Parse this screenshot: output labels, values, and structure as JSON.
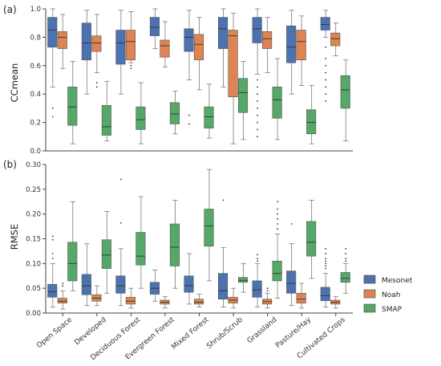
{
  "chart_data": [
    {
      "type": "box",
      "panel_label": "(a)",
      "ylabel": "CCmean",
      "ylim": [
        0.0,
        1.0
      ],
      "yticks": [
        0.0,
        0.2,
        0.4,
        0.6,
        0.8,
        1.0
      ],
      "categories": [
        "Open Space",
        "Developed",
        "Deciduous Forest",
        "Evergreen Forest",
        "Mixed Forest",
        "Shrub/Scrub",
        "Grassland",
        "Pasture/Hay",
        "Cultivated Crops"
      ],
      "series": [
        {
          "name": "Mesonet",
          "color": "#4c72b0",
          "boxes": [
            {
              "min": 0.45,
              "q1": 0.73,
              "median": 0.85,
              "q3": 0.94,
              "max": 1.0,
              "fliers": [
                0.3,
                0.24
              ]
            },
            {
              "min": 0.4,
              "q1": 0.64,
              "median": 0.76,
              "q3": 0.9,
              "max": 0.99,
              "fliers": []
            },
            {
              "min": 0.4,
              "q1": 0.61,
              "median": 0.76,
              "q3": 0.85,
              "max": 0.99,
              "fliers": []
            },
            {
              "min": 0.72,
              "q1": 0.81,
              "median": 0.87,
              "q3": 0.94,
              "max": 1.0,
              "fliers": []
            },
            {
              "min": 0.5,
              "q1": 0.7,
              "median": 0.8,
              "q3": 0.86,
              "max": 0.99,
              "fliers": [
                0.25,
                0.19
              ]
            },
            {
              "min": 0.45,
              "q1": 0.72,
              "median": 0.86,
              "q3": 0.94,
              "max": 1.0,
              "fliers": []
            },
            {
              "min": 0.54,
              "q1": 0.76,
              "median": 0.86,
              "q3": 0.94,
              "max": 1.0,
              "fliers": [
                0.5,
                0.45,
                0.4,
                0.35,
                0.3,
                0.25,
                0.2,
                0.15,
                0.1
              ]
            },
            {
              "min": 0.4,
              "q1": 0.62,
              "median": 0.73,
              "q3": 0.88,
              "max": 0.99,
              "fliers": []
            },
            {
              "min": 0.8,
              "q1": 0.85,
              "median": 0.89,
              "q3": 0.94,
              "max": 0.99,
              "fliers": [
                0.73,
                0.65,
                0.6,
                0.55,
                0.5,
                0.45,
                0.4,
                0.35
              ]
            }
          ]
        },
        {
          "name": "Noah",
          "color": "#dd8452",
          "boxes": [
            {
              "min": 0.58,
              "q1": 0.72,
              "median": 0.8,
              "q3": 0.84,
              "max": 0.96,
              "fliers": []
            },
            {
              "min": 0.55,
              "q1": 0.7,
              "median": 0.76,
              "q3": 0.81,
              "max": 0.96,
              "fliers": [
                0.48,
                0.45
              ]
            },
            {
              "min": 0.62,
              "q1": 0.64,
              "median": 0.77,
              "q3": 0.85,
              "max": 0.98,
              "fliers": [
                0.6,
                0.58
              ]
            },
            {
              "min": 0.59,
              "q1": 0.66,
              "median": 0.74,
              "q3": 0.78,
              "max": 0.91,
              "fliers": []
            },
            {
              "min": 0.43,
              "q1": 0.64,
              "median": 0.75,
              "q3": 0.82,
              "max": 0.94,
              "fliers": []
            },
            {
              "min": 0.05,
              "q1": 0.38,
              "median": 0.81,
              "q3": 0.85,
              "max": 0.97,
              "fliers": []
            },
            {
              "min": 0.55,
              "q1": 0.72,
              "median": 0.79,
              "q3": 0.84,
              "max": 0.94,
              "fliers": []
            },
            {
              "min": 0.46,
              "q1": 0.64,
              "median": 0.77,
              "q3": 0.85,
              "max": 0.95,
              "fliers": []
            },
            {
              "min": 0.67,
              "q1": 0.74,
              "median": 0.79,
              "q3": 0.83,
              "max": 0.9,
              "fliers": []
            }
          ]
        },
        {
          "name": "SMAP",
          "color": "#55a868",
          "boxes": [
            {
              "min": 0.05,
              "q1": 0.18,
              "median": 0.31,
              "q3": 0.45,
              "max": 0.63,
              "fliers": []
            },
            {
              "min": 0.07,
              "q1": 0.11,
              "median": 0.17,
              "q3": 0.32,
              "max": 0.49,
              "fliers": []
            },
            {
              "min": 0.05,
              "q1": 0.15,
              "median": 0.22,
              "q3": 0.31,
              "max": 0.48,
              "fliers": []
            },
            {
              "min": 0.12,
              "q1": 0.19,
              "median": 0.26,
              "q3": 0.34,
              "max": 0.42,
              "fliers": []
            },
            {
              "min": 0.09,
              "q1": 0.16,
              "median": 0.24,
              "q3": 0.31,
              "max": 0.47,
              "fliers": []
            },
            {
              "min": 0.08,
              "q1": 0.27,
              "median": 0.41,
              "q3": 0.51,
              "max": 0.63,
              "fliers": []
            },
            {
              "min": 0.08,
              "q1": 0.23,
              "median": 0.36,
              "q3": 0.45,
              "max": 0.65,
              "fliers": []
            },
            {
              "min": 0.05,
              "q1": 0.12,
              "median": 0.2,
              "q3": 0.29,
              "max": 0.46,
              "fliers": []
            },
            {
              "min": 0.07,
              "q1": 0.3,
              "median": 0.43,
              "q3": 0.53,
              "max": 0.64,
              "fliers": []
            }
          ]
        }
      ]
    },
    {
      "type": "box",
      "panel_label": "(b)",
      "ylabel": "RMSE",
      "ylim": [
        0.0,
        0.3
      ],
      "yticks": [
        0.0,
        0.05,
        0.1,
        0.15,
        0.2,
        0.25,
        0.3
      ],
      "categories": [
        "Open Space",
        "Developed",
        "Deciduous Forest",
        "Evergreen Forest",
        "Mixed Forest",
        "Shrub/Scrub",
        "Grassland",
        "Pasture/Hay",
        "Cultivated Crops"
      ],
      "series": [
        {
          "name": "Mesonet",
          "color": "#4c72b0",
          "boxes": [
            {
              "min": 0.012,
              "q1": 0.032,
              "median": 0.043,
              "q3": 0.058,
              "max": 0.1,
              "fliers": [
                0.155,
                0.148,
                0.12,
                0.11
              ]
            },
            {
              "min": 0.015,
              "q1": 0.037,
              "median": 0.055,
              "q3": 0.078,
              "max": 0.14,
              "fliers": []
            },
            {
              "min": 0.015,
              "q1": 0.04,
              "median": 0.055,
              "q3": 0.075,
              "max": 0.13,
              "fliers": [
                0.27,
                0.182
              ]
            },
            {
              "min": 0.024,
              "q1": 0.038,
              "median": 0.05,
              "q3": 0.062,
              "max": 0.087,
              "fliers": []
            },
            {
              "min": 0.018,
              "q1": 0.042,
              "median": 0.055,
              "q3": 0.075,
              "max": 0.12,
              "fliers": []
            },
            {
              "min": 0.012,
              "q1": 0.028,
              "median": 0.045,
              "q3": 0.08,
              "max": 0.132,
              "fliers": [
                0.228
              ]
            },
            {
              "min": 0.012,
              "q1": 0.032,
              "median": 0.047,
              "q3": 0.065,
              "max": 0.1,
              "fliers": [
                0.118,
                0.11,
                0.105
              ]
            },
            {
              "min": 0.015,
              "q1": 0.04,
              "median": 0.06,
              "q3": 0.085,
              "max": 0.14,
              "fliers": [
                0.18
              ]
            },
            {
              "min": 0.012,
              "q1": 0.025,
              "median": 0.035,
              "q3": 0.052,
              "max": 0.08,
              "fliers": [
                0.13,
                0.12,
                0.11,
                0.105,
                0.1,
                0.095,
                0.09
              ]
            }
          ]
        },
        {
          "name": "Noah",
          "color": "#dd8452",
          "boxes": [
            {
              "min": 0.008,
              "q1": 0.02,
              "median": 0.024,
              "q3": 0.03,
              "max": 0.045,
              "fliers": [
                0.055,
                0.06
              ]
            },
            {
              "min": 0.015,
              "q1": 0.024,
              "median": 0.03,
              "q3": 0.037,
              "max": 0.055,
              "fliers": []
            },
            {
              "min": 0.01,
              "q1": 0.018,
              "median": 0.024,
              "q3": 0.032,
              "max": 0.05,
              "fliers": []
            },
            {
              "min": 0.01,
              "q1": 0.018,
              "median": 0.022,
              "q3": 0.026,
              "max": 0.033,
              "fliers": []
            },
            {
              "min": 0.012,
              "q1": 0.018,
              "median": 0.022,
              "q3": 0.028,
              "max": 0.038,
              "fliers": []
            },
            {
              "min": 0.01,
              "q1": 0.02,
              "median": 0.026,
              "q3": 0.032,
              "max": 0.05,
              "fliers": []
            },
            {
              "min": 0.01,
              "q1": 0.018,
              "median": 0.023,
              "q3": 0.028,
              "max": 0.04,
              "fliers": [
                0.045,
                0.05
              ]
            },
            {
              "min": 0.01,
              "q1": 0.02,
              "median": 0.028,
              "q3": 0.04,
              "max": 0.06,
              "fliers": []
            },
            {
              "min": 0.01,
              "q1": 0.018,
              "median": 0.022,
              "q3": 0.026,
              "max": 0.033,
              "fliers": []
            }
          ]
        },
        {
          "name": "SMAP",
          "color": "#55a868",
          "boxes": [
            {
              "min": 0.045,
              "q1": 0.065,
              "median": 0.1,
              "q3": 0.143,
              "max": 0.225,
              "fliers": []
            },
            {
              "min": 0.04,
              "q1": 0.09,
              "median": 0.117,
              "q3": 0.148,
              "max": 0.205,
              "fliers": []
            },
            {
              "min": 0.05,
              "q1": 0.097,
              "median": 0.115,
              "q3": 0.163,
              "max": 0.235,
              "fliers": []
            },
            {
              "min": 0.05,
              "q1": 0.095,
              "median": 0.133,
              "q3": 0.18,
              "max": 0.228,
              "fliers": []
            },
            {
              "min": 0.065,
              "q1": 0.135,
              "median": 0.176,
              "q3": 0.21,
              "max": 0.29,
              "fliers": []
            },
            {
              "min": 0.042,
              "q1": 0.062,
              "median": 0.066,
              "q3": 0.072,
              "max": 0.1,
              "fliers": []
            },
            {
              "min": 0.03,
              "q1": 0.065,
              "median": 0.08,
              "q3": 0.105,
              "max": 0.16,
              "fliers": [
                0.225,
                0.21,
                0.2,
                0.19,
                0.18,
                0.17
              ]
            },
            {
              "min": 0.07,
              "q1": 0.115,
              "median": 0.143,
              "q3": 0.185,
              "max": 0.228,
              "fliers": []
            },
            {
              "min": 0.04,
              "q1": 0.062,
              "median": 0.07,
              "q3": 0.082,
              "max": 0.1,
              "fliers": [
                0.13,
                0.12,
                0.11,
                0.105
              ]
            }
          ]
        }
      ]
    }
  ],
  "legend": {
    "position": "right",
    "entries": [
      "Mesonet",
      "Noah",
      "SMAP"
    ]
  }
}
